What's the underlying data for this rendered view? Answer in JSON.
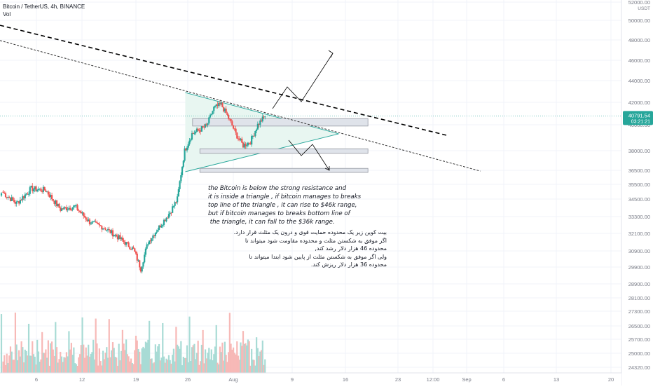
{
  "header": {
    "symbol": "Bitcoin / TetherUS, 4h, BINANCE",
    "indicator": "Vol"
  },
  "chart_data": {
    "type": "candlestick",
    "symbol": "Bitcoin / TetherUS",
    "interval": "4h",
    "exchange": "BINANCE",
    "currency_label": "USDT",
    "y_ticks": [
      "52000.00",
      "50000.00",
      "48000.00",
      "46000.00",
      "44000.00",
      "42000.00",
      "40000.00",
      "38000.00",
      "36500.00",
      "35500.00",
      "34500.00",
      "33300.00",
      "32100.00",
      "30900.00",
      "29900.00",
      "28900.00",
      "28100.00",
      "27300.00",
      "26500.00",
      "25700.00",
      "25000.00",
      "24320.00"
    ],
    "x_ticks": [
      "6",
      "12",
      "19",
      "26",
      "Aug",
      "9",
      "16",
      "23",
      "12:00",
      "Sep",
      "6",
      "13",
      "20"
    ],
    "last_price": "40791.54",
    "countdown": "03:21:21",
    "price_series": [
      {
        "date": "Jul 1",
        "close": 35000
      },
      {
        "date": "Jul 3",
        "close": 34200
      },
      {
        "date": "Jul 5",
        "close": 35200
      },
      {
        "date": "Jul 7",
        "close": 35100
      },
      {
        "date": "Jul 9",
        "close": 33800
      },
      {
        "date": "Jul 11",
        "close": 34000
      },
      {
        "date": "Jul 13",
        "close": 32900
      },
      {
        "date": "Jul 15",
        "close": 32500
      },
      {
        "date": "Jul 17",
        "close": 31800
      },
      {
        "date": "Jul 19",
        "close": 31000
      },
      {
        "date": "Jul 20",
        "close": 29800
      },
      {
        "date": "Jul 21",
        "close": 31500
      },
      {
        "date": "Jul 22",
        "close": 32200
      },
      {
        "date": "Jul 24",
        "close": 33600
      },
      {
        "date": "Jul 25",
        "close": 34500
      },
      {
        "date": "Jul 26",
        "close": 38000
      },
      {
        "date": "Jul 27",
        "close": 39300
      },
      {
        "date": "Jul 29",
        "close": 39900
      },
      {
        "date": "Jul 30",
        "close": 41500
      },
      {
        "date": "Jul 31",
        "close": 41800
      },
      {
        "date": "Aug 1",
        "close": 40600
      },
      {
        "date": "Aug 2",
        "close": 39300
      },
      {
        "date": "Aug 3",
        "close": 38400
      },
      {
        "date": "Aug 4",
        "close": 38700
      },
      {
        "date": "Aug 5",
        "close": 40000
      },
      {
        "date": "Aug 6",
        "close": 40791.54
      }
    ],
    "levels": [
      40200,
      38000,
      36500
    ],
    "annotation_en": [
      "the Bitcoin is below the strong resistance and",
      "it is inside a triangle , if bitcoin manages to breaks",
      "top line of the triangle , it can rise to $46k range,",
      "but if bitcoin manages to breaks bottom line of",
      " the triangle, it can fall to the $36k range."
    ],
    "annotation_fa": [
      "بیت کوین زیر یک محدوده حمایت قوی و درون یک مثلث قرار دارد.",
      "اگر موفق به شکستن مثلث و محدوده مقاومت شود میتواند تا",
      "محدوده 46 هزار دلار رشد کند,",
      "ولی اگر موفق به شکستن مثلث از پایین شود ابتدا میتواند تا",
      "محدوده 36 هزار دلار ریزش کند."
    ],
    "colors": {
      "up": "#26a69a",
      "down": "#ef5350",
      "price_line": "#26a69a",
      "triangle_fill": "#e8f6f1",
      "band_fill": "#dfe3ea",
      "grid": "#f0f3fa",
      "text": "#131722",
      "axis_text": "#787b86"
    }
  }
}
